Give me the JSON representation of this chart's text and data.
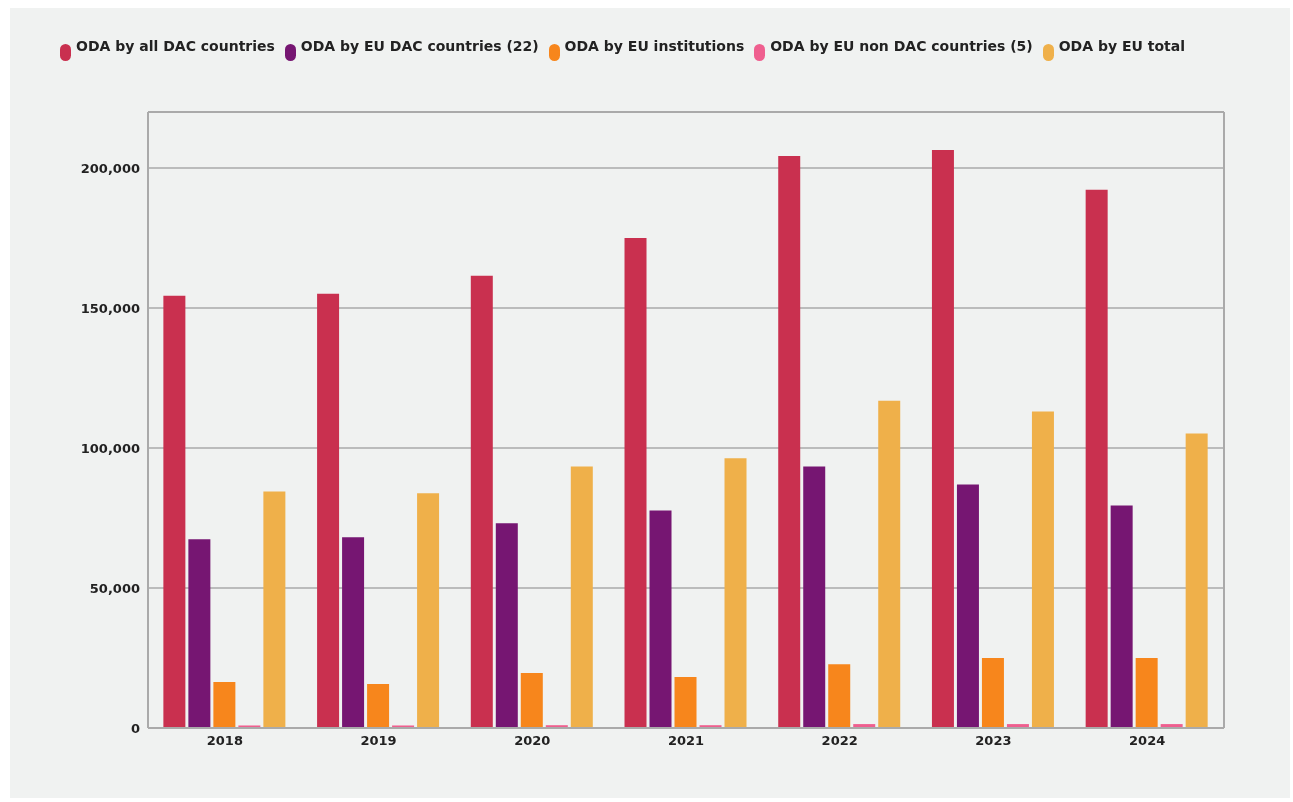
{
  "chart_data": {
    "type": "bar",
    "categories": [
      "2018",
      "2019",
      "2020",
      "2021",
      "2022",
      "2023",
      "2024"
    ],
    "series": [
      {
        "name": "ODA by all DAC countries",
        "color": "#c9304f",
        "values": [
          154400,
          155100,
          161500,
          175000,
          204300,
          206400,
          192200
        ]
      },
      {
        "name": "ODA by EU DAC countries (22)",
        "color": "#761672",
        "values": [
          67400,
          68100,
          73100,
          77700,
          93400,
          87000,
          79500
        ]
      },
      {
        "name": "ODA by EU institutions",
        "color": "#f7861c",
        "values": [
          16400,
          15700,
          19600,
          18200,
          22800,
          25000,
          25000
        ]
      },
      {
        "name": "ODA by EU non DAC countries (5)",
        "color": "#ef5f8f",
        "values": [
          900,
          900,
          1000,
          1000,
          1400,
          1400,
          1400
        ]
      },
      {
        "name": "ODA by EU total",
        "color": "#efb04a",
        "values": [
          84500,
          83800,
          93400,
          96300,
          116900,
          113000,
          105200
        ]
      }
    ],
    "ylim": [
      0,
      220000
    ],
    "yticks": [
      {
        "value": 0,
        "label": "0"
      },
      {
        "value": 50000,
        "label": "50,000"
      },
      {
        "value": 100000,
        "label": "100,000"
      },
      {
        "value": 150000,
        "label": "150,000"
      },
      {
        "value": 200000,
        "label": "200,000"
      }
    ],
    "grid": "y",
    "legend": "top"
  }
}
